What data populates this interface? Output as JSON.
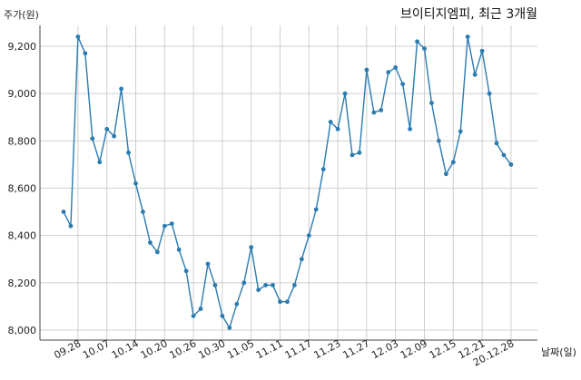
{
  "chart_data": {
    "type": "line",
    "title": "브이티지엠피, 최근 3개월",
    "xlabel": "날짜(일)",
    "ylabel": "주가(원)",
    "ylim": [
      7950,
      9320
    ],
    "yticks": [
      8000,
      8200,
      8400,
      8600,
      8800,
      9000,
      9200
    ],
    "ytick_labels": [
      "8,000",
      "8,200",
      "8,400",
      "8,600",
      "8,800",
      "9,000",
      "9,200"
    ],
    "xtick_labels": [
      "09.28",
      "10.07",
      "10.14",
      "10.20",
      "10.26",
      "10.30",
      "11.05",
      "11.11",
      "11.17",
      "11.23",
      "11.27",
      "12.03",
      "12.09",
      "12.15",
      "12.21",
      "20.12.28"
    ],
    "xtick_index": [
      2,
      6,
      10,
      14,
      18,
      22,
      26,
      30,
      34,
      38,
      42,
      46,
      50,
      54,
      58,
      62
    ],
    "grid": true,
    "series": [
      {
        "values": [
          8500,
          8440,
          9240,
          9170,
          8810,
          8710,
          8850,
          8820,
          9020,
          8750,
          8620,
          8500,
          8370,
          8330,
          8440,
          8450,
          8340,
          8250,
          8060,
          8090,
          8280,
          8190,
          8060,
          8010,
          8110,
          8200,
          8350,
          8170,
          8190,
          8190,
          8120,
          8120,
          8190,
          8300,
          8400,
          8510,
          8680,
          8880,
          8850,
          9000,
          8740,
          8750,
          9100,
          8920,
          8930,
          9090,
          9110,
          9040,
          8850,
          9220,
          9190,
          8960,
          8800,
          8660,
          8710,
          8840,
          9240,
          9080,
          9180,
          9000,
          8790,
          8740,
          8700
        ],
        "color": "#2b7bb0"
      }
    ]
  }
}
